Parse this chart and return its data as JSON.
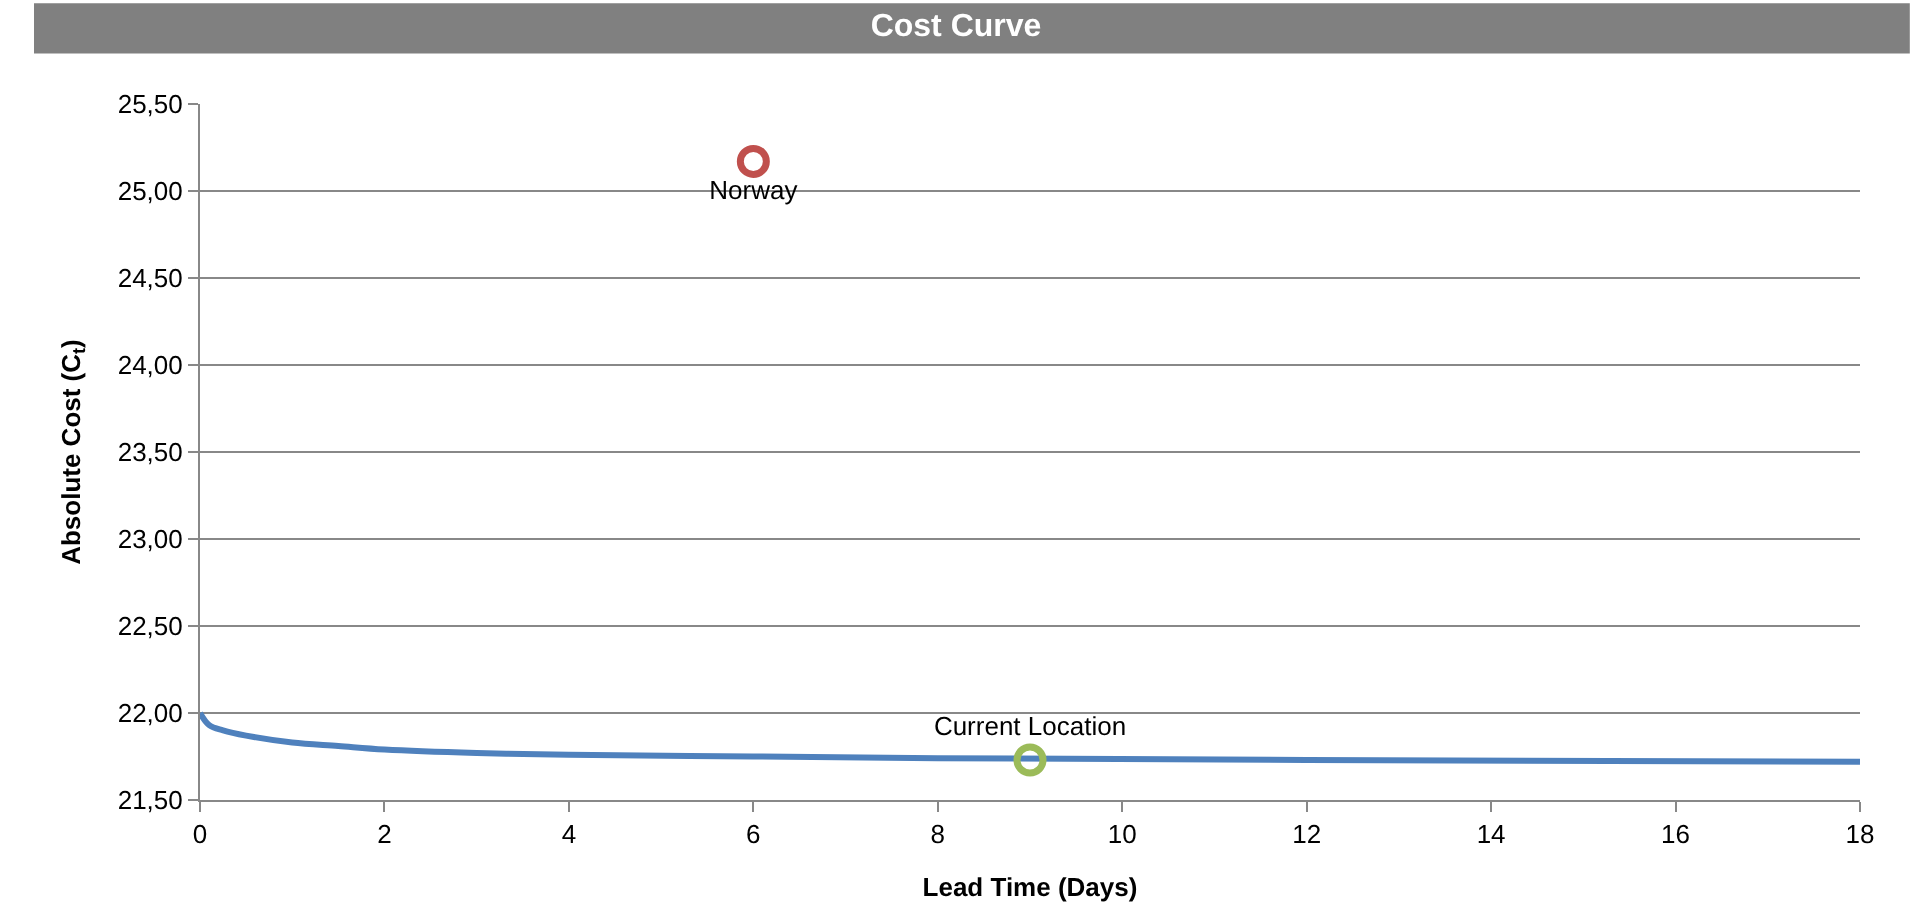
{
  "chart_data": {
    "type": "line",
    "title": "Cost Curve",
    "xlabel": "Lead Time (Days)",
    "ylabel": "Absolute Cost (C$_{t}$)",
    "xlim": [
      0,
      18
    ],
    "xticks": [
      0,
      2,
      4,
      6,
      8,
      10,
      12,
      14,
      16,
      18
    ],
    "ylim": [
      21.5,
      25.5
    ],
    "yticks": [
      {
        "value": 21.5,
        "label": "21,50"
      },
      {
        "value": 22.0,
        "label": "22,00"
      },
      {
        "value": 22.5,
        "label": "22,50"
      },
      {
        "value": 23.0,
        "label": "23,00"
      },
      {
        "value": 23.5,
        "label": "23,50"
      },
      {
        "value": 24.0,
        "label": "24,00"
      },
      {
        "value": 24.5,
        "label": "24,50"
      },
      {
        "value": 25.0,
        "label": "25,00"
      },
      {
        "value": 25.5,
        "label": "25,50"
      }
    ],
    "grid": "y",
    "legend": false,
    "series": [
      {
        "color": "#4f81bd",
        "x": [
          0,
          0.1,
          0.25,
          0.5,
          1,
          1.5,
          2,
          3,
          4,
          6,
          8,
          12,
          18
        ],
        "values": [
          22.0,
          21.93,
          21.9,
          21.87,
          21.83,
          21.81,
          21.79,
          21.77,
          21.76,
          21.75,
          21.74,
          21.73,
          21.72
        ]
      },
      {
        "type": "scatter",
        "marker": "circle",
        "name": "Norway",
        "color": "#c0504d",
        "x": [
          6
        ],
        "values": [
          25.17
        ]
      },
      {
        "type": "scatter",
        "marker": "circle",
        "name": "Current Location",
        "color": "#9bbb59",
        "x": [
          9
        ],
        "values": [
          21.73
        ]
      }
    ]
  }
}
